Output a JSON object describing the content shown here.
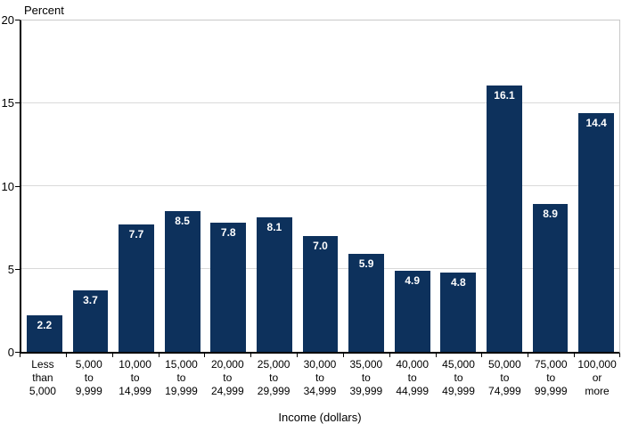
{
  "chart_data": {
    "type": "bar",
    "ylabel": "Percent",
    "xlabel": "Income (dollars)",
    "ylim": [
      0,
      20
    ],
    "yticks": [
      0,
      5,
      10,
      15,
      20
    ],
    "gridline_values": [
      5,
      10,
      15
    ],
    "grid": true,
    "legend": "none",
    "bar_color": "#0d315c",
    "value_label_color": "#ffffff",
    "grid_color": "#d9d9d9",
    "axis_color": "#000000",
    "plot_border_color": "#c9c9c9",
    "categories": [
      [
        "Less",
        "than",
        "5,000"
      ],
      [
        "5,000",
        "to",
        "9,999"
      ],
      [
        "10,000",
        "to",
        "14,999"
      ],
      [
        "15,000",
        "to",
        "19,999"
      ],
      [
        "20,000",
        "to",
        "24,999"
      ],
      [
        "25,000",
        "to",
        "29,999"
      ],
      [
        "30,000",
        "to",
        "34,999"
      ],
      [
        "35,000",
        "to",
        "39,999"
      ],
      [
        "40,000",
        "to",
        "44,999"
      ],
      [
        "45,000",
        "to",
        "49,999"
      ],
      [
        "50,000",
        "to",
        "74,999"
      ],
      [
        "75,000",
        "to",
        "99,999"
      ],
      [
        "100,000",
        "or",
        "more"
      ]
    ],
    "values": [
      2.2,
      3.7,
      7.7,
      8.5,
      7.8,
      8.1,
      7.0,
      5.9,
      4.9,
      4.8,
      16.1,
      8.9,
      14.4
    ]
  }
}
